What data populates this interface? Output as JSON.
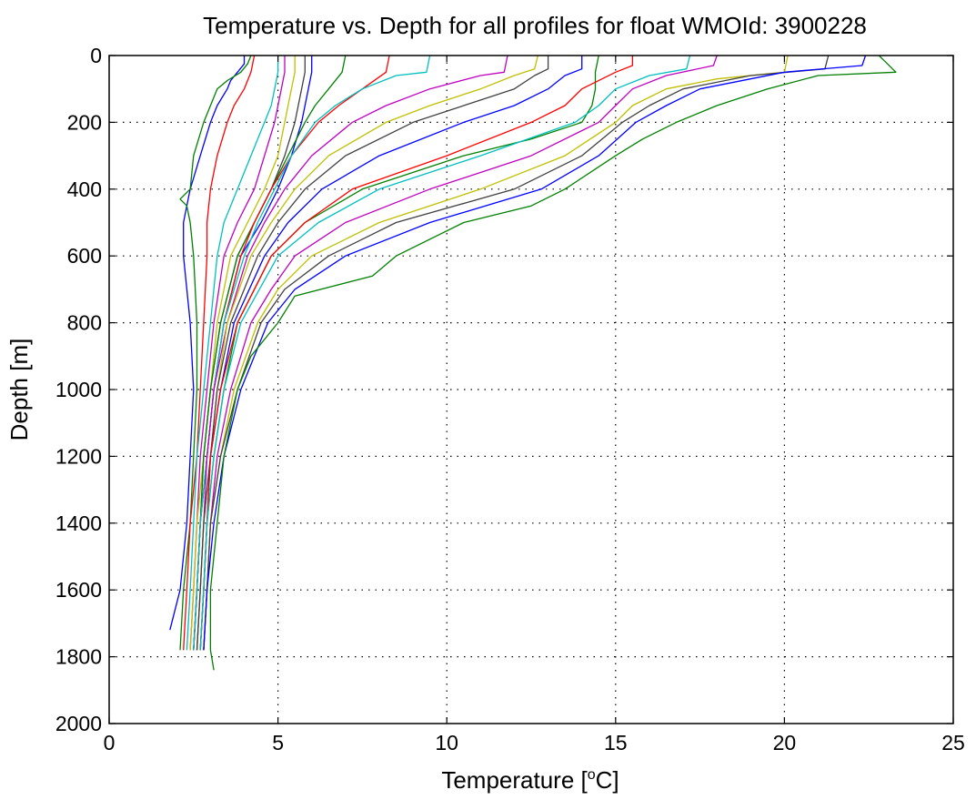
{
  "chart_data": {
    "type": "line",
    "title": "Temperature vs. Depth for all profiles for float WMOId: 3900228",
    "xlabel": {
      "prefix": "Temperature [",
      "sup": "o",
      "suffix": "C]"
    },
    "ylabel": "Depth [m]",
    "xlim": [
      0,
      25
    ],
    "ylim": [
      0,
      2000
    ],
    "y_reversed": true,
    "grid": true,
    "xticks": [
      0,
      5,
      10,
      15,
      20,
      25
    ],
    "yticks": [
      0,
      200,
      400,
      600,
      800,
      1000,
      1200,
      1400,
      1600,
      1800,
      2000
    ],
    "line_colors": [
      "#0000ff",
      "#008000",
      "#ff0000",
      "#00bfbf",
      "#bf00bf",
      "#bfbf00",
      "#404040"
    ],
    "series": [
      {
        "depth": [
          0,
          25,
          50,
          75,
          100,
          150,
          200,
          300,
          400,
          500,
          600,
          800,
          1000,
          1200,
          1400,
          1600,
          1720
        ],
        "temp": [
          4.0,
          4.0,
          3.8,
          3.6,
          3.5,
          3.2,
          3.0,
          2.7,
          2.4,
          2.2,
          2.2,
          2.4,
          2.5,
          2.4,
          2.3,
          2.1,
          1.8
        ]
      },
      {
        "depth": [
          0,
          25,
          50,
          75,
          100,
          150,
          200,
          300,
          400,
          430,
          450,
          500,
          600,
          800,
          1000,
          1200,
          1400,
          1600,
          1780
        ],
        "temp": [
          4.2,
          4.1,
          3.9,
          3.5,
          3.2,
          3.0,
          2.8,
          2.5,
          2.4,
          2.1,
          2.3,
          2.4,
          2.5,
          2.6,
          2.6,
          2.5,
          2.4,
          2.2,
          2.1
        ]
      },
      {
        "depth": [
          0,
          50,
          100,
          150,
          200,
          300,
          400,
          500,
          600,
          800,
          1000,
          1200,
          1400,
          1600,
          1780
        ],
        "temp": [
          4.3,
          4.2,
          4.0,
          3.7,
          3.5,
          3.2,
          3.0,
          2.9,
          2.9,
          2.8,
          2.7,
          2.6,
          2.4,
          2.3,
          2.2
        ]
      },
      {
        "depth": [
          0,
          50,
          100,
          150,
          200,
          300,
          400,
          500,
          600,
          800,
          1000,
          1200,
          1400,
          1600,
          1780
        ],
        "temp": [
          5.0,
          5.0,
          4.9,
          4.8,
          4.6,
          4.2,
          3.8,
          3.4,
          3.2,
          3.0,
          2.8,
          2.6,
          2.5,
          2.4,
          2.3
        ]
      },
      {
        "depth": [
          0,
          50,
          100,
          150,
          200,
          300,
          400,
          500,
          600,
          800,
          1000,
          1200,
          1400,
          1600,
          1780
        ],
        "temp": [
          5.2,
          5.2,
          5.1,
          5.0,
          4.9,
          4.6,
          4.3,
          3.8,
          3.4,
          3.1,
          2.9,
          2.7,
          2.6,
          2.5,
          2.4
        ]
      },
      {
        "depth": [
          0,
          50,
          100,
          150,
          200,
          300,
          400,
          500,
          600,
          800,
          1000,
          1200,
          1400,
          1600,
          1780
        ],
        "temp": [
          5.5,
          5.5,
          5.4,
          5.3,
          5.2,
          5.0,
          4.6,
          4.1,
          3.6,
          3.2,
          3.0,
          2.8,
          2.6,
          2.5,
          2.4
        ]
      },
      {
        "depth": [
          0,
          50,
          100,
          150,
          200,
          300,
          400,
          500,
          600,
          800,
          1000,
          1200,
          1400,
          1600,
          1780
        ],
        "temp": [
          5.8,
          5.8,
          5.7,
          5.6,
          5.5,
          5.2,
          4.8,
          4.3,
          3.8,
          3.3,
          3.0,
          2.8,
          2.7,
          2.6,
          2.5
        ]
      },
      {
        "depth": [
          0,
          50,
          100,
          150,
          200,
          300,
          400,
          500,
          600,
          800,
          1000,
          1200,
          1400,
          1600,
          1780
        ],
        "temp": [
          6.0,
          6.0,
          5.9,
          5.8,
          5.7,
          5.4,
          5.0,
          4.5,
          3.9,
          3.4,
          3.1,
          2.9,
          2.7,
          2.6,
          2.5
        ]
      },
      {
        "depth": [
          0,
          50,
          100,
          150,
          200,
          300,
          400,
          500,
          600,
          800,
          1000,
          1200,
          1400,
          1600,
          1780
        ],
        "temp": [
          7.0,
          6.9,
          6.5,
          6.1,
          5.8,
          5.3,
          4.8,
          4.3,
          3.8,
          3.3,
          3.0,
          2.8,
          2.7,
          2.6,
          2.5
        ]
      },
      {
        "depth": [
          0,
          50,
          100,
          150,
          200,
          300,
          400,
          500,
          600,
          800,
          1000,
          1200,
          1400,
          1600,
          1780
        ],
        "temp": [
          8.3,
          8.2,
          7.5,
          6.8,
          6.2,
          5.4,
          4.8,
          4.3,
          3.9,
          3.4,
          3.1,
          2.9,
          2.7,
          2.6,
          2.5
        ]
      },
      {
        "depth": [
          0,
          50,
          60,
          100,
          150,
          200,
          300,
          400,
          500,
          600,
          800,
          1000,
          1200,
          1400,
          1600,
          1780
        ],
        "temp": [
          9.5,
          9.4,
          8.5,
          7.5,
          6.7,
          6.1,
          5.4,
          4.9,
          4.4,
          4.0,
          3.4,
          3.1,
          2.9,
          2.7,
          2.6,
          2.5
        ]
      },
      {
        "depth": [
          0,
          50,
          60,
          100,
          150,
          200,
          300,
          400,
          500,
          600,
          800,
          1000,
          1200,
          1400,
          1600,
          1780
        ],
        "temp": [
          11.8,
          11.7,
          11.0,
          9.5,
          8.2,
          7.2,
          6.0,
          5.2,
          4.6,
          4.1,
          3.5,
          3.1,
          2.9,
          2.8,
          2.7,
          2.6
        ]
      },
      {
        "depth": [
          0,
          40,
          60,
          100,
          150,
          200,
          300,
          400,
          500,
          600,
          800,
          1000,
          1200,
          1400,
          1600,
          1780
        ],
        "temp": [
          12.7,
          12.6,
          12.0,
          11.0,
          9.5,
          8.2,
          6.5,
          5.5,
          4.8,
          4.2,
          3.5,
          3.2,
          3.0,
          2.8,
          2.7,
          2.6
        ]
      },
      {
        "depth": [
          0,
          40,
          60,
          100,
          150,
          200,
          300,
          400,
          500,
          600,
          800,
          1000,
          1200,
          1400,
          1600,
          1780
        ],
        "temp": [
          13.0,
          13.0,
          12.6,
          12.0,
          10.5,
          9.0,
          7.0,
          5.8,
          5.0,
          4.4,
          3.6,
          3.2,
          3.0,
          2.8,
          2.7,
          2.6
        ]
      },
      {
        "depth": [
          0,
          40,
          60,
          100,
          150,
          200,
          300,
          400,
          500,
          600,
          800,
          1000,
          1200,
          1400,
          1600,
          1780
        ],
        "temp": [
          14.0,
          14.0,
          13.5,
          13.0,
          12.0,
          10.5,
          8.0,
          6.3,
          5.3,
          4.6,
          3.7,
          3.3,
          3.0,
          2.9,
          2.8,
          2.7
        ]
      },
      {
        "depth": [
          0,
          50,
          100,
          150,
          200,
          250,
          300,
          400,
          500,
          600,
          800,
          1000,
          1200,
          1400,
          1600,
          1780
        ],
        "temp": [
          14.5,
          14.4,
          14.4,
          14.3,
          14.0,
          12.5,
          10.5,
          7.5,
          5.8,
          4.8,
          3.8,
          3.4,
          3.1,
          2.9,
          2.8,
          2.7
        ]
      },
      {
        "depth": [
          0,
          30,
          50,
          100,
          150,
          200,
          300,
          400,
          500,
          600,
          800,
          1000,
          1200,
          1400,
          1600,
          1780
        ],
        "temp": [
          15.5,
          15.5,
          15.0,
          14.0,
          13.5,
          12.5,
          10.0,
          7.2,
          5.8,
          4.8,
          3.8,
          3.3,
          3.0,
          2.9,
          2.8,
          2.7
        ]
      },
      {
        "depth": [
          0,
          40,
          60,
          100,
          150,
          200,
          300,
          400,
          500,
          600,
          800,
          1000,
          1200,
          1400,
          1600,
          1780
        ],
        "temp": [
          17.2,
          17.1,
          16.0,
          15.0,
          14.5,
          13.8,
          11.0,
          8.0,
          6.2,
          5.0,
          3.9,
          3.4,
          3.1,
          2.9,
          2.8,
          2.7
        ]
      },
      {
        "depth": [
          0,
          30,
          60,
          100,
          150,
          200,
          300,
          400,
          500,
          600,
          700,
          800,
          1000,
          1200,
          1400,
          1600,
          1780
        ],
        "temp": [
          18.0,
          17.9,
          16.5,
          15.5,
          15.0,
          14.5,
          12.5,
          9.5,
          7.0,
          5.5,
          4.8,
          4.2,
          3.6,
          3.2,
          3.0,
          2.9,
          2.8
        ]
      },
      {
        "depth": [
          0,
          50,
          70,
          100,
          150,
          200,
          300,
          400,
          500,
          600,
          700,
          800,
          1000,
          1200,
          1400,
          1600,
          1780
        ],
        "temp": [
          20.1,
          20.0,
          18.0,
          16.5,
          15.5,
          15.0,
          13.5,
          11.0,
          8.0,
          6.0,
          5.0,
          4.4,
          3.7,
          3.3,
          3.0,
          2.9,
          2.8
        ]
      },
      {
        "depth": [
          0,
          40,
          60,
          100,
          150,
          200,
          300,
          400,
          500,
          600,
          700,
          800,
          1000,
          1200,
          1400,
          1600,
          1780
        ],
        "temp": [
          21.3,
          21.2,
          19.0,
          17.0,
          16.0,
          15.2,
          14.0,
          12.0,
          8.5,
          6.5,
          5.2,
          4.5,
          3.8,
          3.3,
          3.0,
          2.9,
          2.8
        ]
      },
      {
        "depth": [
          0,
          30,
          50,
          100,
          150,
          200,
          300,
          400,
          500,
          600,
          700,
          800,
          1000,
          1200,
          1400,
          1600,
          1780
        ],
        "temp": [
          22.4,
          22.3,
          20.0,
          17.5,
          16.5,
          15.6,
          14.5,
          12.8,
          9.5,
          7.0,
          5.5,
          4.7,
          3.9,
          3.4,
          3.1,
          2.9,
          2.8
        ]
      },
      {
        "depth": [
          0,
          20,
          50,
          60,
          100,
          150,
          200,
          250,
          300,
          400,
          450,
          500,
          600,
          660,
          720,
          800,
          900,
          1000,
          1100,
          1200,
          1300,
          1400,
          1500,
          1600,
          1700,
          1780,
          1840
        ],
        "temp": [
          22.8,
          23.0,
          23.3,
          21.0,
          19.5,
          18.0,
          16.8,
          15.8,
          15.0,
          13.5,
          12.5,
          10.5,
          8.5,
          7.8,
          5.5,
          5.0,
          4.2,
          3.8,
          3.6,
          3.4,
          3.3,
          3.2,
          3.1,
          3.0,
          3.0,
          3.0,
          3.1
        ]
      }
    ]
  }
}
